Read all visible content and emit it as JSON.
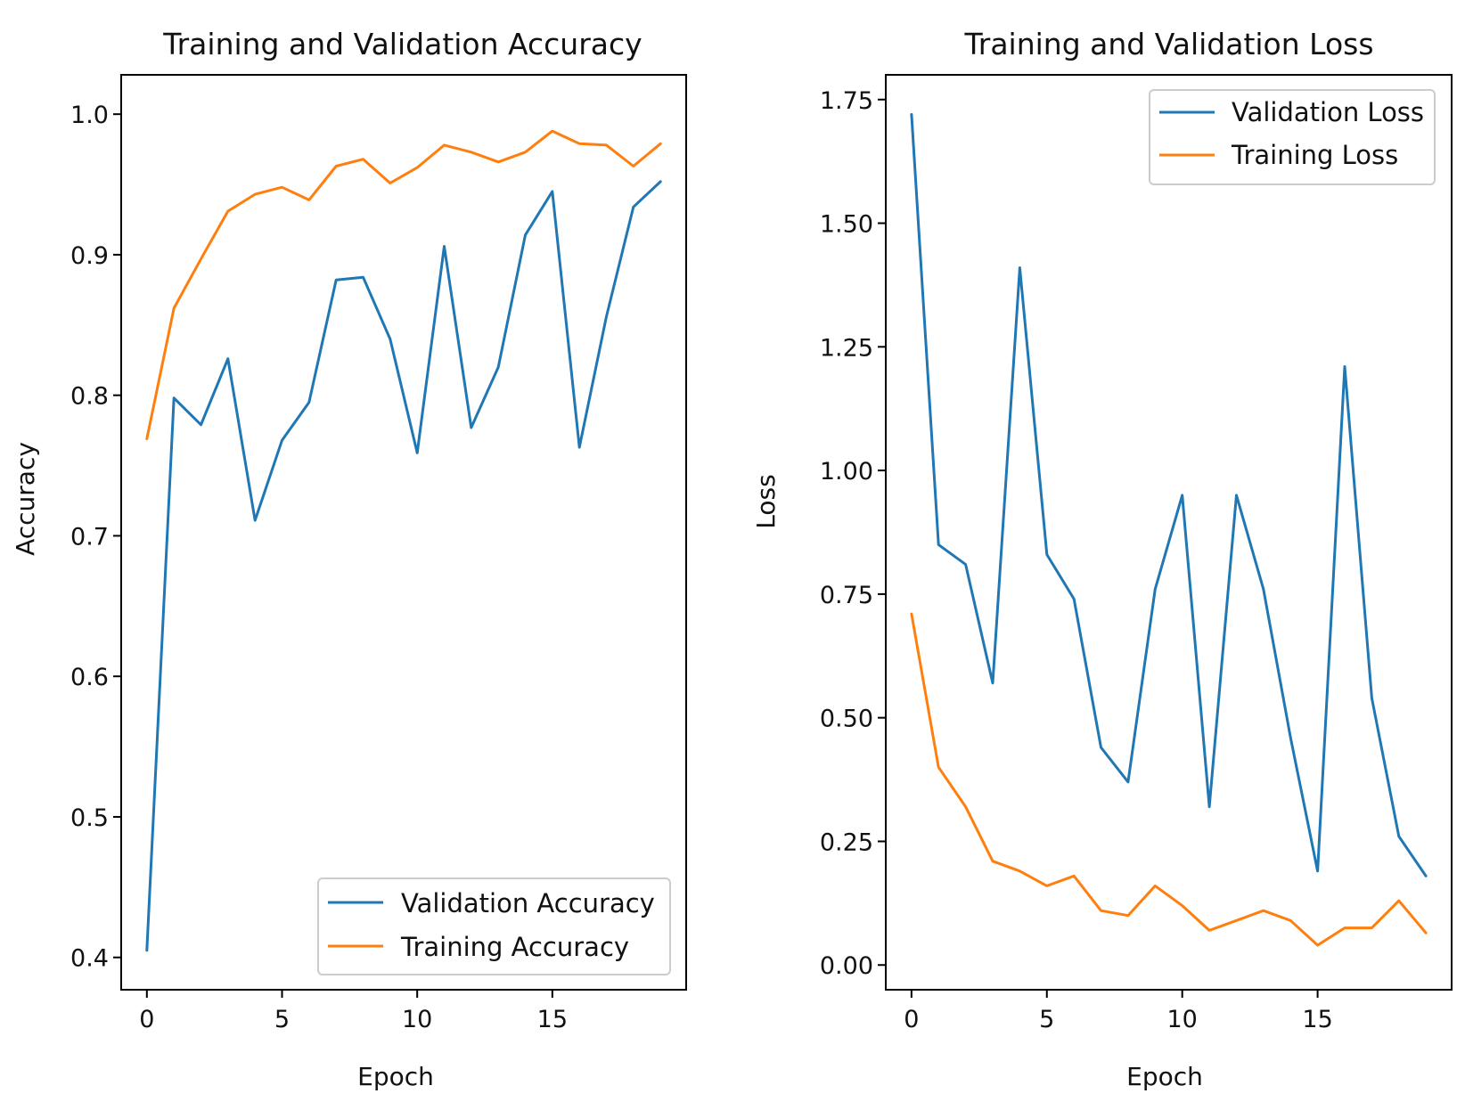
{
  "colors": {
    "blue": "#1f77b4",
    "orange": "#ff7f0e"
  },
  "chart_data": [
    {
      "type": "line",
      "title": "Training and Validation Accuracy",
      "xlabel": "Epoch",
      "ylabel": "Accuracy",
      "xlim": [
        -0.95,
        19.95
      ],
      "ylim": [
        0.377,
        1.028
      ],
      "xticks": [
        0,
        5,
        10,
        15
      ],
      "xtick_labels": [
        "0",
        "5",
        "10",
        "15"
      ],
      "yticks": [
        0.4,
        0.5,
        0.6,
        0.7,
        0.8,
        0.9,
        1.0
      ],
      "ytick_labels": [
        "0.4",
        "0.5",
        "0.6",
        "0.7",
        "0.8",
        "0.9",
        "1.0"
      ],
      "legend_position": "lower-right",
      "x": [
        0,
        1,
        2,
        3,
        4,
        5,
        6,
        7,
        8,
        9,
        10,
        11,
        12,
        13,
        14,
        15,
        16,
        17,
        18,
        19
      ],
      "series": [
        {
          "name": "Validation Accuracy",
          "color": "#1f77b4",
          "values": [
            0.405,
            0.798,
            0.779,
            0.826,
            0.711,
            0.768,
            0.795,
            0.882,
            0.884,
            0.84,
            0.759,
            0.906,
            0.777,
            0.82,
            0.914,
            0.945,
            0.763,
            0.856,
            0.934,
            0.952
          ]
        },
        {
          "name": "Training Accuracy",
          "color": "#ff7f0e",
          "values": [
            0.769,
            0.862,
            0.897,
            0.931,
            0.943,
            0.948,
            0.939,
            0.963,
            0.968,
            0.951,
            0.962,
            0.978,
            0.973,
            0.966,
            0.973,
            0.988,
            0.979,
            0.978,
            0.963,
            0.979
          ]
        }
      ]
    },
    {
      "type": "line",
      "title": "Training and Validation Loss",
      "xlabel": "Epoch",
      "ylabel": "Loss",
      "xlim": [
        -0.95,
        19.95
      ],
      "ylim": [
        -0.05,
        1.8
      ],
      "xticks": [
        0,
        5,
        10,
        15
      ],
      "xtick_labels": [
        "0",
        "5",
        "10",
        "15"
      ],
      "yticks": [
        0.0,
        0.25,
        0.5,
        0.75,
        1.0,
        1.25,
        1.5,
        1.75
      ],
      "ytick_labels": [
        "0.00",
        "0.25",
        "0.50",
        "0.75",
        "1.00",
        "1.25",
        "1.50",
        "1.75"
      ],
      "legend_position": "upper-right",
      "x": [
        0,
        1,
        2,
        3,
        4,
        5,
        6,
        7,
        8,
        9,
        10,
        11,
        12,
        13,
        14,
        15,
        16,
        17,
        18,
        19
      ],
      "series": [
        {
          "name": "Validation Loss",
          "color": "#1f77b4",
          "values": [
            1.72,
            0.85,
            0.81,
            0.57,
            1.41,
            0.83,
            0.74,
            0.44,
            0.37,
            0.76,
            0.95,
            0.32,
            0.95,
            0.76,
            0.46,
            0.19,
            1.21,
            0.54,
            0.26,
            0.18
          ]
        },
        {
          "name": "Training Loss",
          "color": "#ff7f0e",
          "values": [
            0.71,
            0.4,
            0.32,
            0.21,
            0.19,
            0.16,
            0.18,
            0.11,
            0.1,
            0.16,
            0.12,
            0.07,
            0.09,
            0.11,
            0.09,
            0.04,
            0.075,
            0.075,
            0.13,
            0.065
          ]
        }
      ]
    }
  ]
}
